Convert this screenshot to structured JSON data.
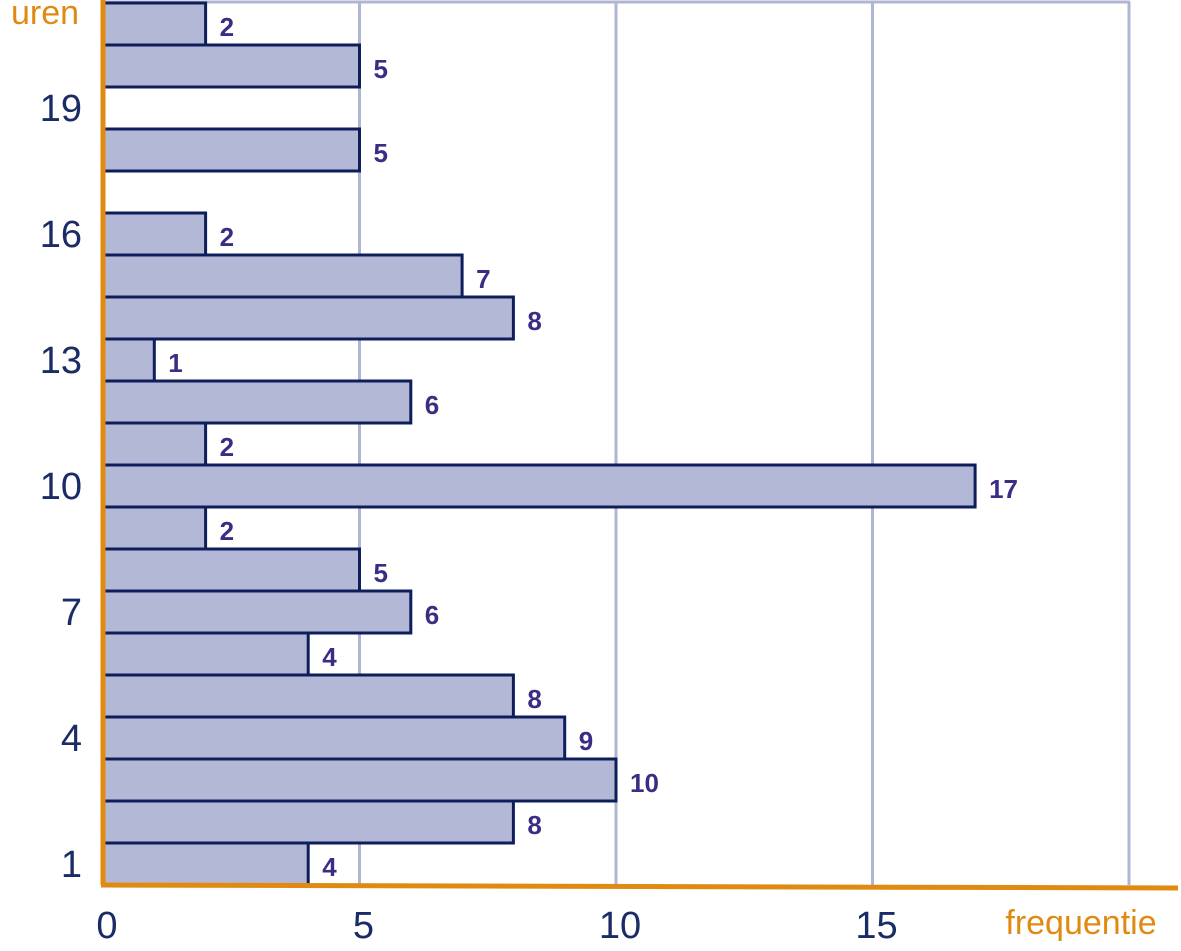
{
  "chart_data": {
    "type": "bar",
    "orientation": "horizontal",
    "xlabel": "frequentie",
    "ylabel": "uren",
    "xlim": [
      0,
      20
    ],
    "x_ticks": [
      0,
      5,
      10,
      15
    ],
    "y_ticks": [
      1,
      4,
      7,
      10,
      13,
      16,
      19
    ],
    "grid": "vertical",
    "categories": [
      1,
      2,
      3,
      4,
      5,
      6,
      7,
      8,
      9,
      10,
      11,
      12,
      13,
      14,
      15,
      16,
      17,
      18,
      19,
      20,
      21
    ],
    "values": [
      4,
      8,
      10,
      9,
      8,
      4,
      6,
      5,
      2,
      17,
      2,
      6,
      1,
      8,
      7,
      2,
      0,
      5,
      0,
      5,
      2
    ],
    "data_labels": [
      "4",
      "8",
      "10",
      "9",
      "8",
      "4",
      "6",
      "5",
      "2",
      "17",
      "2",
      "6",
      "1",
      "8",
      "7",
      "2",
      "",
      "5",
      "",
      "5",
      "2"
    ]
  },
  "colors": {
    "bar_fill": "#b3b8d6",
    "bar_stroke": "#0d1e5a",
    "axis": "#e08a12",
    "grid": "#b0b5d3",
    "tick_text": "#1b2b66",
    "data_label": "#3b2d83",
    "axis_label": "#e08a12"
  }
}
